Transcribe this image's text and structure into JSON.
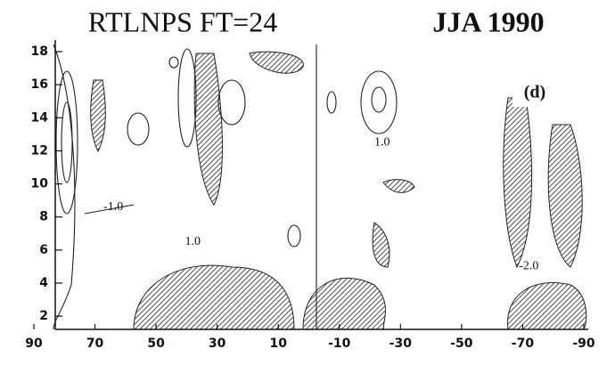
{
  "chart_data": {
    "type": "contour",
    "title": "RTLNPS FT=24",
    "subtitle": "JJA 1990",
    "panel_label": "(d)",
    "xlim": [
      90,
      -90
    ],
    "xticks": [
      90,
      70,
      50,
      30,
      10,
      -10,
      -30,
      -50,
      -70,
      -90
    ],
    "ylim": [
      1.2,
      18.7
    ],
    "yticks": [
      2,
      4,
      6,
      8,
      10,
      12,
      14,
      16,
      18
    ],
    "annotations": [
      {
        "text": "1.0",
        "x": -24,
        "y": 12.5
      },
      {
        "text": "-1.0",
        "x": 64,
        "y": 8.6
      },
      {
        "text": "1.0",
        "x": 38,
        "y": 6.5
      },
      {
        "text": "-2.0",
        "x": -72,
        "y": 5.0
      }
    ]
  }
}
